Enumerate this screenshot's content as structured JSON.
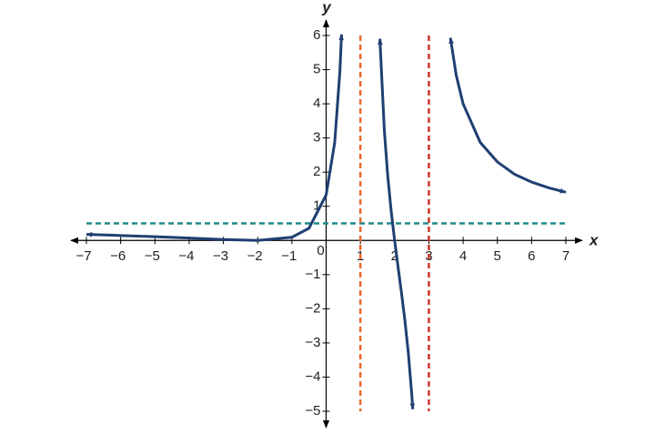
{
  "chart_data": {
    "type": "line",
    "x_label": "x",
    "y_label": "y",
    "xlim": [
      -7,
      7
    ],
    "ylim": [
      -5,
      6
    ],
    "xticks": [
      {
        "value": -7,
        "label": "−7"
      },
      {
        "value": -6,
        "label": "−6"
      },
      {
        "value": -5,
        "label": "−5"
      },
      {
        "value": -4,
        "label": "−4"
      },
      {
        "value": -3,
        "label": "−3"
      },
      {
        "value": -2,
        "label": "−2"
      },
      {
        "value": -1,
        "label": "−1"
      },
      0,
      1,
      2,
      3,
      4,
      5,
      6,
      7
    ],
    "yticks": [
      {
        "value": -5,
        "label": "−5"
      },
      {
        "value": -4,
        "label": "−4"
      },
      {
        "value": -3,
        "label": "−3"
      },
      {
        "value": -2,
        "label": "−2"
      },
      {
        "value": -1,
        "label": "−1"
      },
      1,
      2,
      3,
      4,
      5,
      6
    ],
    "horizontal_lines": [
      {
        "value": 0.5,
        "color": "#1f8a8a"
      }
    ],
    "vertical_lines": [
      {
        "value": 1,
        "color": "#e8692e"
      },
      {
        "value": 3,
        "color": "#d1342c"
      }
    ],
    "series": [
      {
        "color": "#1f3f73",
        "x": [
          -7,
          -6,
          -5,
          -4,
          -3,
          -2,
          -1,
          -0.5,
          0,
          0.25,
          0.4,
          0.45,
          1,
          1.57,
          1.7,
          1.8,
          1.9,
          2,
          2.1,
          2.2,
          2.3,
          2.4,
          2.5,
          2.53,
          3,
          3.63,
          3.8,
          4,
          4.5,
          5,
          5.5,
          6,
          6.5,
          7
        ],
        "values": [
          0.176,
          0.145,
          0.109,
          0.069,
          0.026,
          0,
          0.094,
          0.357,
          1.333,
          2.864,
          4.92,
          6.03,
          null,
          5.9,
          3.22,
          1.88,
          0.854,
          0,
          -0.772,
          -1.53,
          -2.34,
          -3.29,
          -4.5,
          -4.94,
          null,
          5.93,
          4.83,
          4,
          2.87,
          2.3,
          1.94,
          1.71,
          1.54,
          1.41
        ]
      }
    ]
  }
}
